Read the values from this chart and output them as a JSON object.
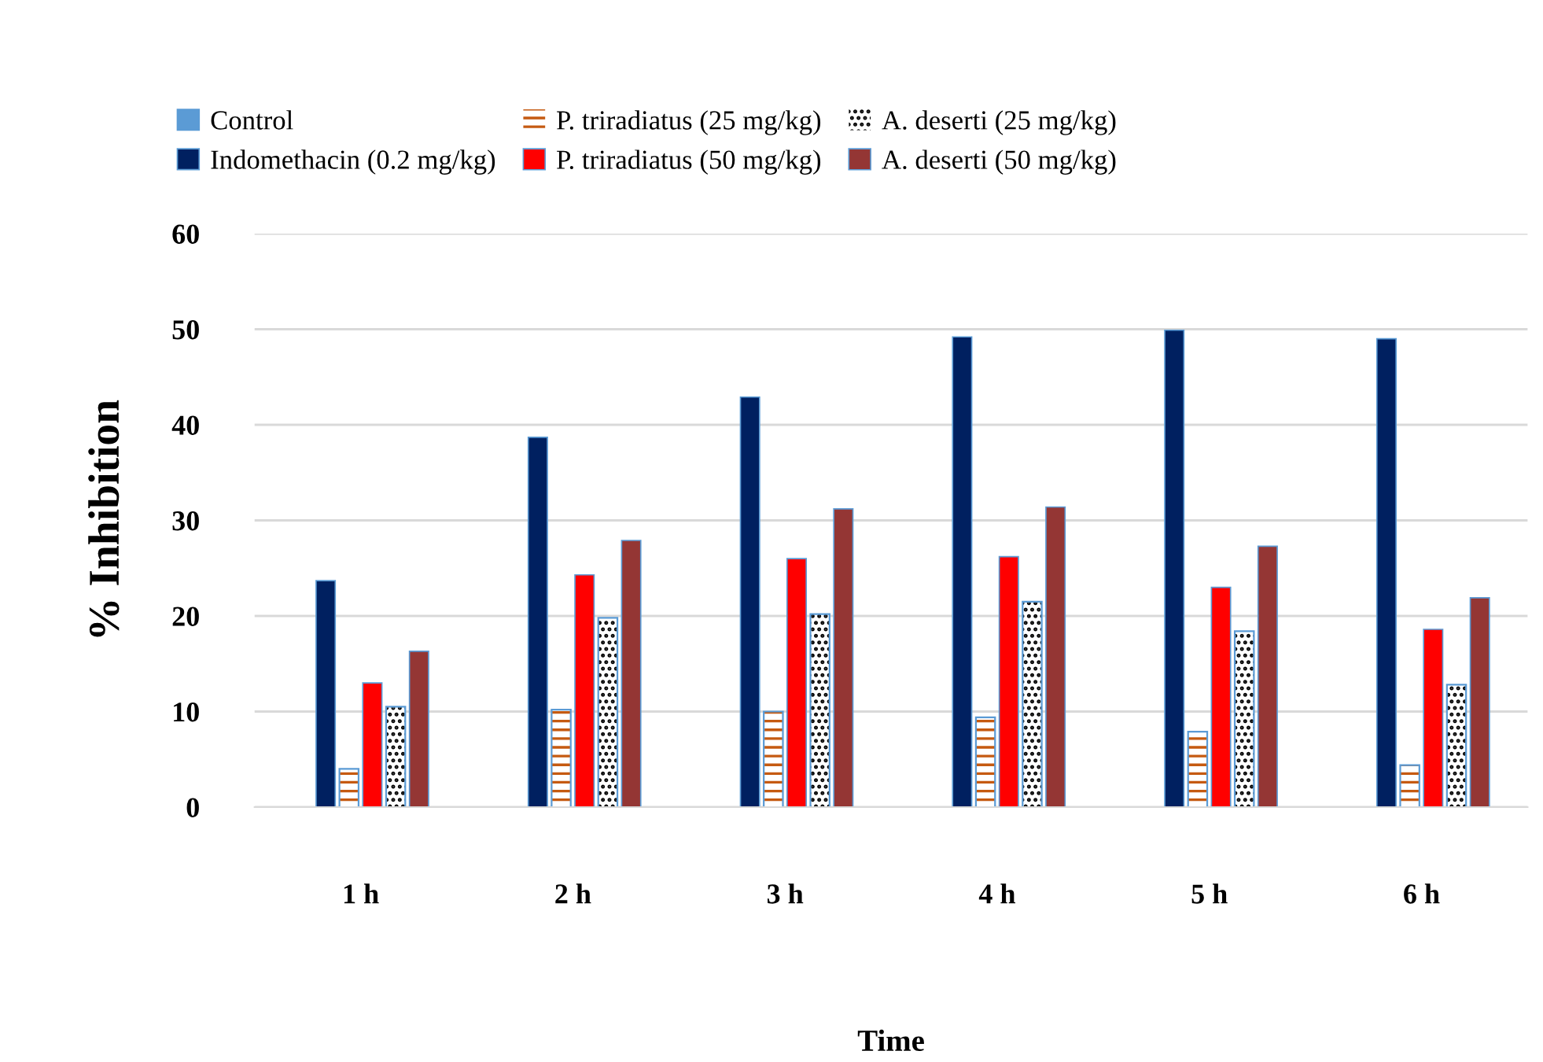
{
  "chart_data": {
    "type": "bar",
    "xlabel": "Time",
    "ylabel": "% Inhibition",
    "categories": [
      "1 h",
      "2 h",
      "3 h",
      "4 h",
      "5 h",
      "6 h"
    ],
    "series": [
      {
        "name": "Control",
        "color": "#5b9bd5",
        "values": [
          0,
          0,
          0,
          0,
          0,
          0
        ]
      },
      {
        "name": "Indomethacin (0.2 mg/kg)",
        "color": "#002060",
        "values": [
          23.7,
          38.7,
          42.9,
          49.2,
          49.9,
          49.0
        ]
      },
      {
        "name": "P. triradiatus (25 mg/kg)",
        "color": "#c55a11",
        "values": [
          4.0,
          10.2,
          10.0,
          9.4,
          7.9,
          4.4
        ]
      },
      {
        "name": "P. triradiatus (50 mg/kg)",
        "color": "#ff0000",
        "values": [
          13.0,
          24.3,
          26.0,
          26.2,
          23.0,
          18.6
        ]
      },
      {
        "name": "A. deserti (25 mg/kg)",
        "color": "#000000",
        "values": [
          10.5,
          19.8,
          20.2,
          21.5,
          18.4,
          12.8
        ]
      },
      {
        "name": "A. deserti (50 mg/kg)",
        "color": "#943634",
        "values": [
          16.3,
          27.9,
          31.2,
          31.4,
          27.3,
          21.9
        ]
      }
    ],
    "ylim": [
      0,
      60
    ],
    "yticks": [
      0,
      10,
      20,
      30,
      40,
      50,
      60
    ],
    "grid": "y",
    "legend": "top"
  }
}
